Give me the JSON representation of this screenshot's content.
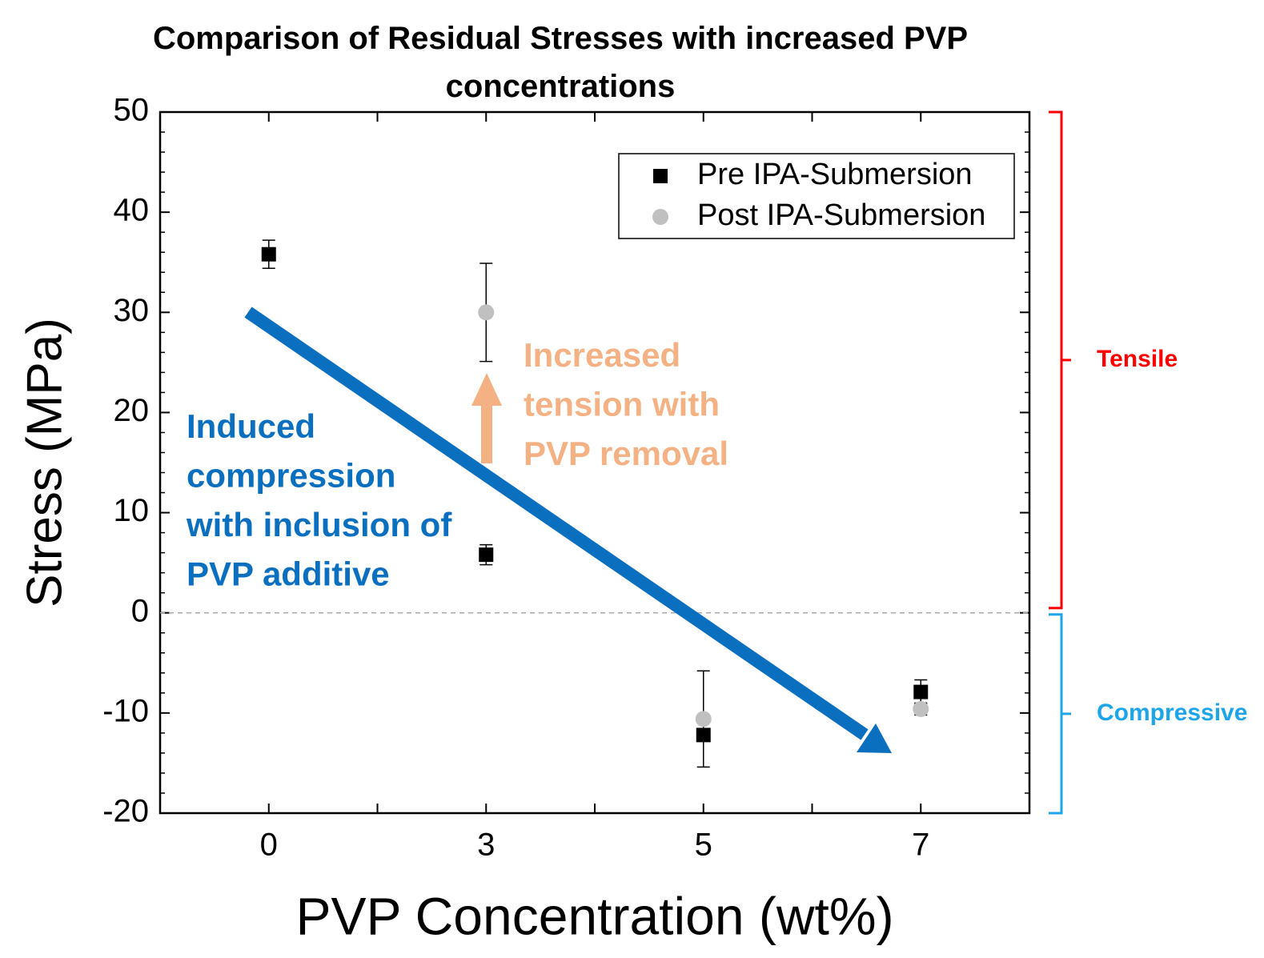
{
  "chart_data": {
    "type": "scatter",
    "title": "Comparison of Residual Stresses with increased PVP concentrations",
    "x_label": "PVP Concentration (wt%)",
    "y_label": "Stress (MPa)",
    "categories": [
      "0",
      "3",
      "5",
      "7"
    ],
    "ylim": [
      -20,
      50
    ],
    "yticks": [
      -20,
      -10,
      0,
      10,
      20,
      30,
      40,
      50
    ],
    "series": [
      {
        "name": "Pre IPA-Submersion",
        "color": "#000000",
        "marker": "square",
        "values": [
          35.8,
          5.8,
          -12.2,
          -7.9
        ],
        "errors": [
          1.4,
          1.0,
          0,
          1.2
        ]
      },
      {
        "name": "Post IPA-Submersion",
        "color": "#c0c0c0",
        "marker": "circle",
        "values": [
          null,
          30,
          -10.6,
          -9.6
        ],
        "errors": [
          null,
          4.9,
          4.8,
          0.6
        ]
      }
    ],
    "legend": "upper right",
    "annotations": [
      {
        "lines": [
          "Induced",
          "compression",
          "with inclusion of",
          "PVP additive"
        ],
        "color": "#0b6fc0"
      },
      {
        "lines": [
          "Increased",
          "tension with",
          "PVP removal"
        ],
        "color": "#f4b183"
      }
    ],
    "regions": [
      {
        "label": "Tensile",
        "color": "#ff0000",
        "range": [
          0,
          50
        ]
      },
      {
        "label": "Compressive",
        "color": "#1ea5e8",
        "range": [
          -20,
          0
        ]
      }
    ]
  }
}
